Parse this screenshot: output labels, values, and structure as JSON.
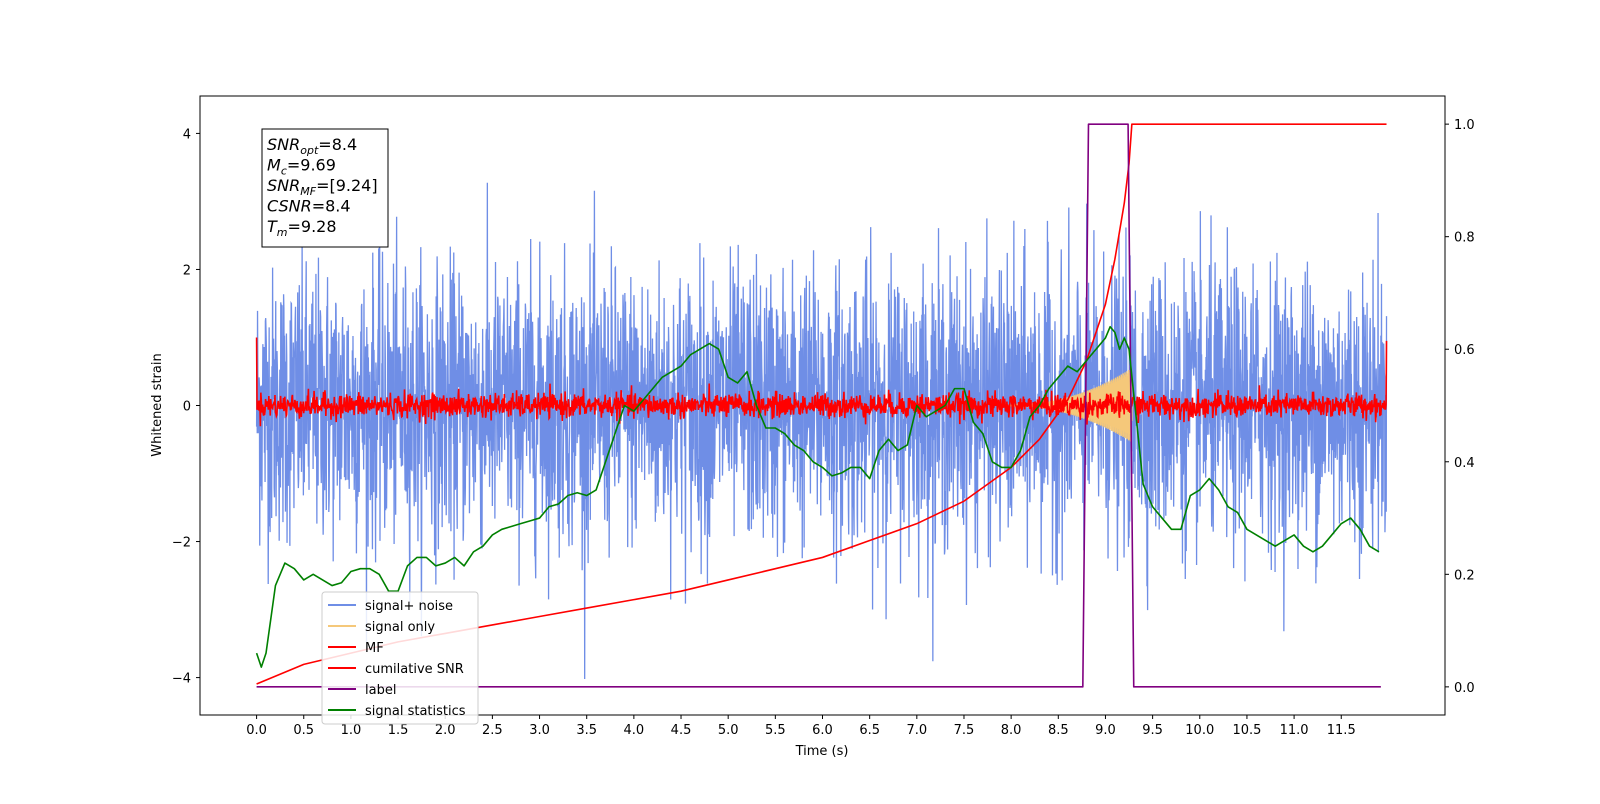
{
  "chart_data": {
    "type": "line",
    "title": "",
    "xlabel": "Time (s)",
    "ylabel": "Whitened strain",
    "xlim": [
      -0.6,
      12.6
    ],
    "ylim_left": [
      -4.55,
      4.55
    ],
    "ylim_right": [
      -0.05,
      1.05
    ],
    "x_ticks": [
      0.0,
      0.5,
      1.0,
      1.5,
      2.0,
      2.5,
      3.0,
      3.5,
      4.0,
      4.5,
      5.0,
      5.5,
      6.0,
      6.5,
      7.0,
      7.5,
      8.0,
      8.5,
      9.0,
      9.5,
      10.0,
      10.5,
      11.0,
      11.5
    ],
    "x_tick_labels": [
      "0.0",
      "0.5",
      "1.0",
      "1.5",
      "2.0",
      "2.5",
      "3.0",
      "3.5",
      "4.0",
      "4.5",
      "5.0",
      "5.5",
      "6.0",
      "6.5",
      "7.0",
      "7.5",
      "8.0",
      "8.5",
      "9.0",
      "9.5",
      "10.0",
      "10.5",
      "11.0",
      "11.5"
    ],
    "y_left_ticks": [
      -4,
      -2,
      0,
      2,
      4
    ],
    "y_left_tick_labels": [
      "−4",
      "−2",
      "0",
      "2",
      "4"
    ],
    "y_right_ticks": [
      0.0,
      0.2,
      0.4,
      0.6,
      0.8,
      1.0
    ],
    "y_right_tick_labels": [
      "0.0",
      "0.2",
      "0.4",
      "0.6",
      "0.8",
      "1.0"
    ],
    "legend_position": "lower-left",
    "grid": false,
    "annotation": {
      "lines": [
        {
          "base": "SNR",
          "sub": "opt",
          "rest": "=8.4"
        },
        {
          "base": "M",
          "sub": "c",
          "rest": "=9.69"
        },
        {
          "base": "SNR",
          "sub": "MF",
          "rest": "=[9.24]"
        },
        {
          "base": "CSNR",
          "sub": "",
          "rest": "=8.4"
        },
        {
          "base": "T",
          "sub": "m",
          "rest": "=9.28"
        }
      ]
    },
    "series": [
      {
        "name": "signal+ noise",
        "color": "#6f8ee6",
        "axis": "left",
        "style": "noise",
        "x_range": [
          0.0,
          11.98
        ],
        "std": 1.0,
        "peak_min": -4.1,
        "peak_max": 4.15
      },
      {
        "name": "signal only",
        "color": "#f5c87a",
        "axis": "left",
        "style": "chirp",
        "x_range": [
          7.9,
          9.28
        ],
        "max_amplitude": 0.55
      },
      {
        "name": "MF",
        "color": "#ff0000",
        "axis": "left",
        "style": "noise",
        "x_range": [
          0.0,
          11.98
        ],
        "std": 0.09,
        "start_value": 1.0,
        "end_value": 0.95
      },
      {
        "name": "cumilative SNR",
        "color": "#ff0000",
        "axis": "right",
        "style": "line",
        "x": [
          0.0,
          0.5,
          1.0,
          1.5,
          2.0,
          2.5,
          3.0,
          3.5,
          4.0,
          4.5,
          5.0,
          5.5,
          6.0,
          6.5,
          7.0,
          7.5,
          8.0,
          8.3,
          8.6,
          8.8,
          9.0,
          9.1,
          9.2,
          9.25,
          9.28,
          9.3,
          11.98
        ],
        "y": [
          0.005,
          0.04,
          0.06,
          0.08,
          0.095,
          0.11,
          0.125,
          0.14,
          0.155,
          0.17,
          0.19,
          0.21,
          0.23,
          0.26,
          0.29,
          0.33,
          0.39,
          0.44,
          0.51,
          0.58,
          0.68,
          0.76,
          0.86,
          0.93,
          1.0,
          1.0,
          1.0
        ]
      },
      {
        "name": "label",
        "color": "#800080",
        "axis": "right",
        "style": "line",
        "x": [
          0.0,
          8.76,
          8.82,
          9.24,
          9.3,
          11.92
        ],
        "y": [
          0.0,
          0.0,
          1.0,
          1.0,
          0.0,
          0.0
        ]
      },
      {
        "name": "signal statistics",
        "color": "#008000",
        "axis": "right",
        "style": "line",
        "x": [
          0.0,
          0.05,
          0.1,
          0.15,
          0.2,
          0.3,
          0.4,
          0.5,
          0.6,
          0.7,
          0.8,
          0.9,
          1.0,
          1.1,
          1.2,
          1.3,
          1.4,
          1.5,
          1.6,
          1.7,
          1.8,
          1.9,
          2.0,
          2.1,
          2.2,
          2.3,
          2.4,
          2.5,
          2.6,
          2.7,
          2.8,
          2.9,
          3.0,
          3.1,
          3.2,
          3.3,
          3.4,
          3.5,
          3.6,
          3.7,
          3.8,
          3.9,
          4.0,
          4.1,
          4.2,
          4.3,
          4.4,
          4.5,
          4.6,
          4.7,
          4.8,
          4.9,
          5.0,
          5.1,
          5.2,
          5.3,
          5.4,
          5.5,
          5.6,
          5.7,
          5.8,
          5.9,
          6.0,
          6.1,
          6.2,
          6.3,
          6.4,
          6.5,
          6.6,
          6.7,
          6.8,
          6.9,
          7.0,
          7.1,
          7.2,
          7.3,
          7.4,
          7.5,
          7.6,
          7.7,
          7.8,
          7.9,
          8.0,
          8.1,
          8.2,
          8.3,
          8.4,
          8.5,
          8.6,
          8.7,
          8.8,
          8.9,
          9.0,
          9.05,
          9.1,
          9.15,
          9.2,
          9.25,
          9.3,
          9.4,
          9.5,
          9.6,
          9.7,
          9.8,
          9.9,
          10.0,
          10.1,
          10.2,
          10.3,
          10.4,
          10.5,
          10.6,
          10.7,
          10.8,
          10.9,
          11.0,
          11.1,
          11.2,
          11.3,
          11.4,
          11.5,
          11.6,
          11.7,
          11.8,
          11.9
        ],
        "y": [
          0.06,
          0.035,
          0.06,
          0.12,
          0.18,
          0.22,
          0.21,
          0.19,
          0.2,
          0.19,
          0.18,
          0.185,
          0.205,
          0.21,
          0.21,
          0.2,
          0.17,
          0.17,
          0.215,
          0.23,
          0.23,
          0.215,
          0.22,
          0.23,
          0.215,
          0.24,
          0.25,
          0.27,
          0.28,
          0.285,
          0.29,
          0.295,
          0.3,
          0.32,
          0.325,
          0.34,
          0.345,
          0.34,
          0.35,
          0.4,
          0.45,
          0.5,
          0.49,
          0.51,
          0.53,
          0.55,
          0.56,
          0.57,
          0.59,
          0.6,
          0.61,
          0.6,
          0.55,
          0.54,
          0.56,
          0.5,
          0.46,
          0.46,
          0.45,
          0.43,
          0.42,
          0.4,
          0.39,
          0.375,
          0.38,
          0.39,
          0.39,
          0.37,
          0.42,
          0.44,
          0.42,
          0.43,
          0.5,
          0.48,
          0.49,
          0.5,
          0.53,
          0.53,
          0.47,
          0.45,
          0.4,
          0.39,
          0.39,
          0.42,
          0.48,
          0.5,
          0.53,
          0.55,
          0.57,
          0.56,
          0.58,
          0.6,
          0.62,
          0.64,
          0.63,
          0.6,
          0.62,
          0.6,
          0.52,
          0.36,
          0.32,
          0.3,
          0.28,
          0.28,
          0.34,
          0.35,
          0.37,
          0.35,
          0.32,
          0.31,
          0.28,
          0.27,
          0.26,
          0.25,
          0.26,
          0.27,
          0.25,
          0.24,
          0.25,
          0.27,
          0.29,
          0.3,
          0.28,
          0.25,
          0.24
        ]
      }
    ]
  }
}
